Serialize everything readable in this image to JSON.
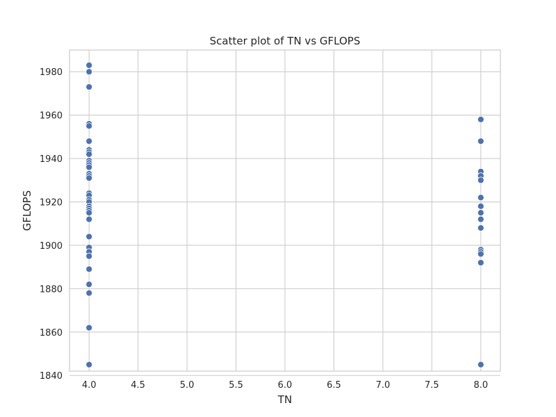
{
  "chart_data": {
    "type": "scatter",
    "title": "Scatter plot of TN vs GFLOPS",
    "xlabel": "TN",
    "ylabel": "GFLOPS",
    "xlim": [
      3.8,
      8.2
    ],
    "ylim": [
      1842,
      1990
    ],
    "xticks": [
      "4.0",
      "4.5",
      "5.0",
      "5.5",
      "6.0",
      "6.5",
      "7.0",
      "7.5",
      "8.0"
    ],
    "yticks": [
      "1840",
      "1860",
      "1880",
      "1900",
      "1920",
      "1940",
      "1960",
      "1980"
    ],
    "grid": true,
    "legend": false,
    "marker_color": "#4c72b0",
    "points": [
      {
        "x": 4,
        "y": 1983
      },
      {
        "x": 4,
        "y": 1980
      },
      {
        "x": 4,
        "y": 1973
      },
      {
        "x": 4,
        "y": 1956
      },
      {
        "x": 4,
        "y": 1955
      },
      {
        "x": 4,
        "y": 1948
      },
      {
        "x": 4,
        "y": 1944
      },
      {
        "x": 4,
        "y": 1943
      },
      {
        "x": 4,
        "y": 1942
      },
      {
        "x": 4,
        "y": 1939
      },
      {
        "x": 4,
        "y": 1938
      },
      {
        "x": 4,
        "y": 1937
      },
      {
        "x": 4,
        "y": 1936
      },
      {
        "x": 4,
        "y": 1933
      },
      {
        "x": 4,
        "y": 1932
      },
      {
        "x": 4,
        "y": 1931
      },
      {
        "x": 4,
        "y": 1924
      },
      {
        "x": 4,
        "y": 1923
      },
      {
        "x": 4,
        "y": 1921
      },
      {
        "x": 4,
        "y": 1920
      },
      {
        "x": 4,
        "y": 1918
      },
      {
        "x": 4,
        "y": 1917
      },
      {
        "x": 4,
        "y": 1916
      },
      {
        "x": 4,
        "y": 1915
      },
      {
        "x": 4,
        "y": 1912
      },
      {
        "x": 4,
        "y": 1904
      },
      {
        "x": 4,
        "y": 1899
      },
      {
        "x": 4,
        "y": 1897
      },
      {
        "x": 4,
        "y": 1895
      },
      {
        "x": 4,
        "y": 1889
      },
      {
        "x": 4,
        "y": 1882
      },
      {
        "x": 4,
        "y": 1878
      },
      {
        "x": 4,
        "y": 1862
      },
      {
        "x": 4,
        "y": 1845
      },
      {
        "x": 8,
        "y": 1958
      },
      {
        "x": 8,
        "y": 1948
      },
      {
        "x": 8,
        "y": 1934
      },
      {
        "x": 8,
        "y": 1932
      },
      {
        "x": 8,
        "y": 1930
      },
      {
        "x": 8,
        "y": 1922
      },
      {
        "x": 8,
        "y": 1918
      },
      {
        "x": 8,
        "y": 1915
      },
      {
        "x": 8,
        "y": 1912
      },
      {
        "x": 8,
        "y": 1908
      },
      {
        "x": 8,
        "y": 1898
      },
      {
        "x": 8,
        "y": 1897
      },
      {
        "x": 8,
        "y": 1896
      },
      {
        "x": 8,
        "y": 1892
      },
      {
        "x": 8,
        "y": 1845
      }
    ]
  }
}
